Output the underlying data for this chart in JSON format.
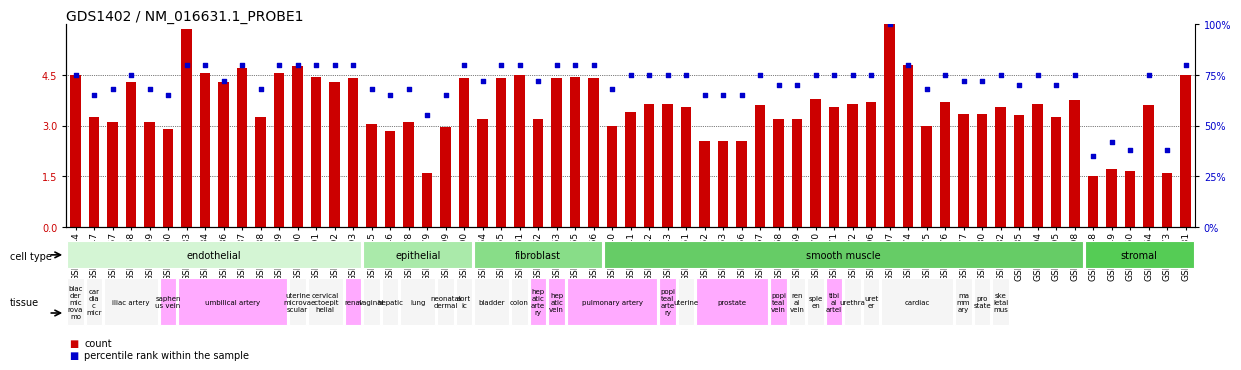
{
  "title": "GDS1402 / NM_016631.1_PROBE1",
  "samples": [
    "GSM72644",
    "GSM72647",
    "GSM72657",
    "GSM72658",
    "GSM72659",
    "GSM72660",
    "GSM72683",
    "GSM72684",
    "GSM72686",
    "GSM72687",
    "GSM72688",
    "GSM72689",
    "GSM72690",
    "GSM72691",
    "GSM72692",
    "GSM72693",
    "GSM72645",
    "GSM72646",
    "GSM72678",
    "GSM72679",
    "GSM72699",
    "GSM72700",
    "GSM72654",
    "GSM72655",
    "GSM72661",
    "GSM72662",
    "GSM72663",
    "GSM72665",
    "GSM72666",
    "GSM72640",
    "GSM72641",
    "GSM72642",
    "GSM72643",
    "GSM72651",
    "GSM72652",
    "GSM72653",
    "GSM72656",
    "GSM72667",
    "GSM72668",
    "GSM72669",
    "GSM72670",
    "GSM72671",
    "GSM72672",
    "GSM72696",
    "GSM72697",
    "GSM72674",
    "GSM72675",
    "GSM72676",
    "GSM72677",
    "GSM72680",
    "GSM72682",
    "GSM72685",
    "GSM72694",
    "GSM72695",
    "GSM72698",
    "GSM72648",
    "GSM72649",
    "GSM72650",
    "GSM72664",
    "GSM72673",
    "GSM72681"
  ],
  "bar_values": [
    4.5,
    3.25,
    3.1,
    4.3,
    3.1,
    2.9,
    5.85,
    4.55,
    4.3,
    4.7,
    3.25,
    4.55,
    4.75,
    4.45,
    4.3,
    4.4,
    3.05,
    2.85,
    3.1,
    1.6,
    2.95,
    4.4,
    3.2,
    4.4,
    4.5,
    3.2,
    4.4,
    4.45,
    4.4,
    3.0,
    3.4,
    3.65,
    3.65,
    3.55,
    2.55,
    2.55,
    2.55,
    3.6,
    3.2,
    3.2,
    3.8,
    3.55,
    3.65,
    3.7,
    6.0,
    4.8,
    3.0,
    3.7,
    3.35,
    3.35,
    3.55,
    3.3,
    3.65,
    3.25,
    3.75,
    1.5,
    1.7,
    1.65,
    3.6,
    1.6,
    4.5
  ],
  "dot_values": [
    75,
    65,
    68,
    75,
    68,
    65,
    80,
    80,
    72,
    80,
    68,
    80,
    80,
    80,
    80,
    80,
    68,
    65,
    68,
    55,
    65,
    80,
    72,
    80,
    80,
    72,
    80,
    80,
    80,
    68,
    75,
    75,
    75,
    75,
    65,
    65,
    65,
    75,
    70,
    70,
    75,
    75,
    75,
    75,
    100,
    80,
    68,
    75,
    72,
    72,
    75,
    70,
    75,
    70,
    75,
    35,
    42,
    38,
    75,
    38,
    80
  ],
  "cell_type_groups": [
    {
      "label": "endothelial",
      "start": 0,
      "end": 15,
      "color": "#ccffcc"
    },
    {
      "label": "epithelial",
      "start": 16,
      "end": 21,
      "color": "#99ff99"
    },
    {
      "label": "fibroblast",
      "start": 22,
      "end": 28,
      "color": "#66dd66"
    },
    {
      "label": "smooth muscle",
      "start": 29,
      "end": 54,
      "color": "#44cc44"
    },
    {
      "label": "stromal",
      "start": 55,
      "end": 60,
      "color": "#33bb33"
    }
  ],
  "tissue_groups": [
    {
      "label": "blac\nder\nmic\nrova\nmo",
      "start": 0,
      "end": 0,
      "pink": false
    },
    {
      "label": "car\ndia\nc\nmicr",
      "start": 1,
      "end": 1,
      "pink": false
    },
    {
      "label": "iliac artery",
      "start": 2,
      "end": 4,
      "pink": false
    },
    {
      "label": "saphen\nus vein",
      "start": 5,
      "end": 5,
      "pink": true
    },
    {
      "label": "umbilical artery",
      "start": 6,
      "end": 11,
      "pink": true
    },
    {
      "label": "uterine\nmicrova\nscular",
      "start": 12,
      "end": 12,
      "pink": false
    },
    {
      "label": "cervical\nectoepit\nhelial",
      "start": 13,
      "end": 14,
      "pink": false
    },
    {
      "label": "renal",
      "start": 15,
      "end": 15,
      "pink": true
    },
    {
      "label": "vaginal",
      "start": 16,
      "end": 16,
      "pink": false
    },
    {
      "label": "hepatic",
      "start": 17,
      "end": 17,
      "pink": false
    },
    {
      "label": "lung",
      "start": 18,
      "end": 19,
      "pink": false
    },
    {
      "label": "neonatal\ndermal",
      "start": 20,
      "end": 20,
      "pink": false
    },
    {
      "label": "aort\nic",
      "start": 21,
      "end": 21,
      "pink": false
    },
    {
      "label": "bladder",
      "start": 22,
      "end": 23,
      "pink": false
    },
    {
      "label": "colon",
      "start": 24,
      "end": 24,
      "pink": false
    },
    {
      "label": "hep\natic\narte\nry",
      "start": 25,
      "end": 25,
      "pink": true
    },
    {
      "label": "hep\natic\nvein",
      "start": 26,
      "end": 26,
      "pink": true
    },
    {
      "label": "pulmonary artery",
      "start": 27,
      "end": 31,
      "pink": true
    },
    {
      "label": "popi\nteal\narte\nry",
      "start": 32,
      "end": 32,
      "pink": true
    },
    {
      "label": "uterine",
      "start": 33,
      "end": 33,
      "pink": false
    },
    {
      "label": "prostate",
      "start": 34,
      "end": 37,
      "pink": true
    },
    {
      "label": "popi\nteal\nvein",
      "start": 38,
      "end": 38,
      "pink": true
    },
    {
      "label": "ren\nal\nvein",
      "start": 39,
      "end": 39,
      "pink": false
    },
    {
      "label": "sple\nen",
      "start": 40,
      "end": 40,
      "pink": false
    },
    {
      "label": "tibi\nal\nartel",
      "start": 41,
      "end": 41,
      "pink": true
    },
    {
      "label": "urethra",
      "start": 42,
      "end": 42,
      "pink": false
    },
    {
      "label": "uret\ner",
      "start": 43,
      "end": 43,
      "pink": false
    },
    {
      "label": "cardiac",
      "start": 44,
      "end": 47,
      "pink": false
    },
    {
      "label": "ma\nmm\nary",
      "start": 48,
      "end": 48,
      "pink": false
    },
    {
      "label": "pro\nstate",
      "start": 49,
      "end": 49,
      "pink": false
    },
    {
      "label": "ske\nletal\nmus",
      "start": 50,
      "end": 50,
      "pink": false
    }
  ],
  "bar_color": "#cc0000",
  "dot_color": "#0000cc",
  "ylim": [
    0,
    6
  ],
  "yticks": [
    0,
    1.5,
    3.0,
    4.5
  ],
  "y2lim": [
    0,
    100
  ],
  "y2ticks": [
    0,
    25,
    50,
    75,
    100
  ],
  "title_fontsize": 10,
  "tick_fontsize": 6.5
}
